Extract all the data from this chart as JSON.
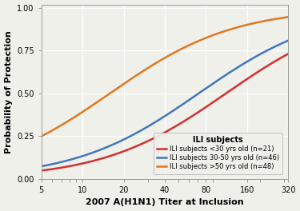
{
  "title": "",
  "xlabel": "2007 A(H1N1) Titer at Inclusion",
  "ylabel": "Probability of Protection",
  "xlim_log": [
    5,
    320
  ],
  "ylim": [
    0,
    1.02
  ],
  "yticks": [
    0.0,
    0.25,
    0.5,
    0.75,
    1.0
  ],
  "xticks": [
    5,
    10,
    20,
    40,
    80,
    160,
    320
  ],
  "background_color": "#f0f0eb",
  "grid_color": "#ffffff",
  "lines": [
    {
      "label": "ILI subjects <30 yrs old (n=21)",
      "color": "#d43030",
      "ec50_log10": 2.05,
      "slope": 2.2,
      "ymax": 1.0,
      "ymin": 0.0
    },
    {
      "label": "ILI subjects 30-50 yrs old (n=46)",
      "color": "#4477bb",
      "ec50_log10": 1.85,
      "slope": 2.2,
      "ymax": 1.0,
      "ymin": 0.0
    },
    {
      "label": "ILI subjects >50 yrs old (n=48)",
      "color": "#e07820",
      "ec50_log10": 1.2,
      "slope": 2.2,
      "ymax": 1.0,
      "ymin": 0.0
    }
  ],
  "legend_title": "ILI subjects",
  "legend_fontsize": 6.0,
  "legend_title_fontsize": 7.0,
  "axis_fontsize": 8,
  "tick_fontsize": 7
}
